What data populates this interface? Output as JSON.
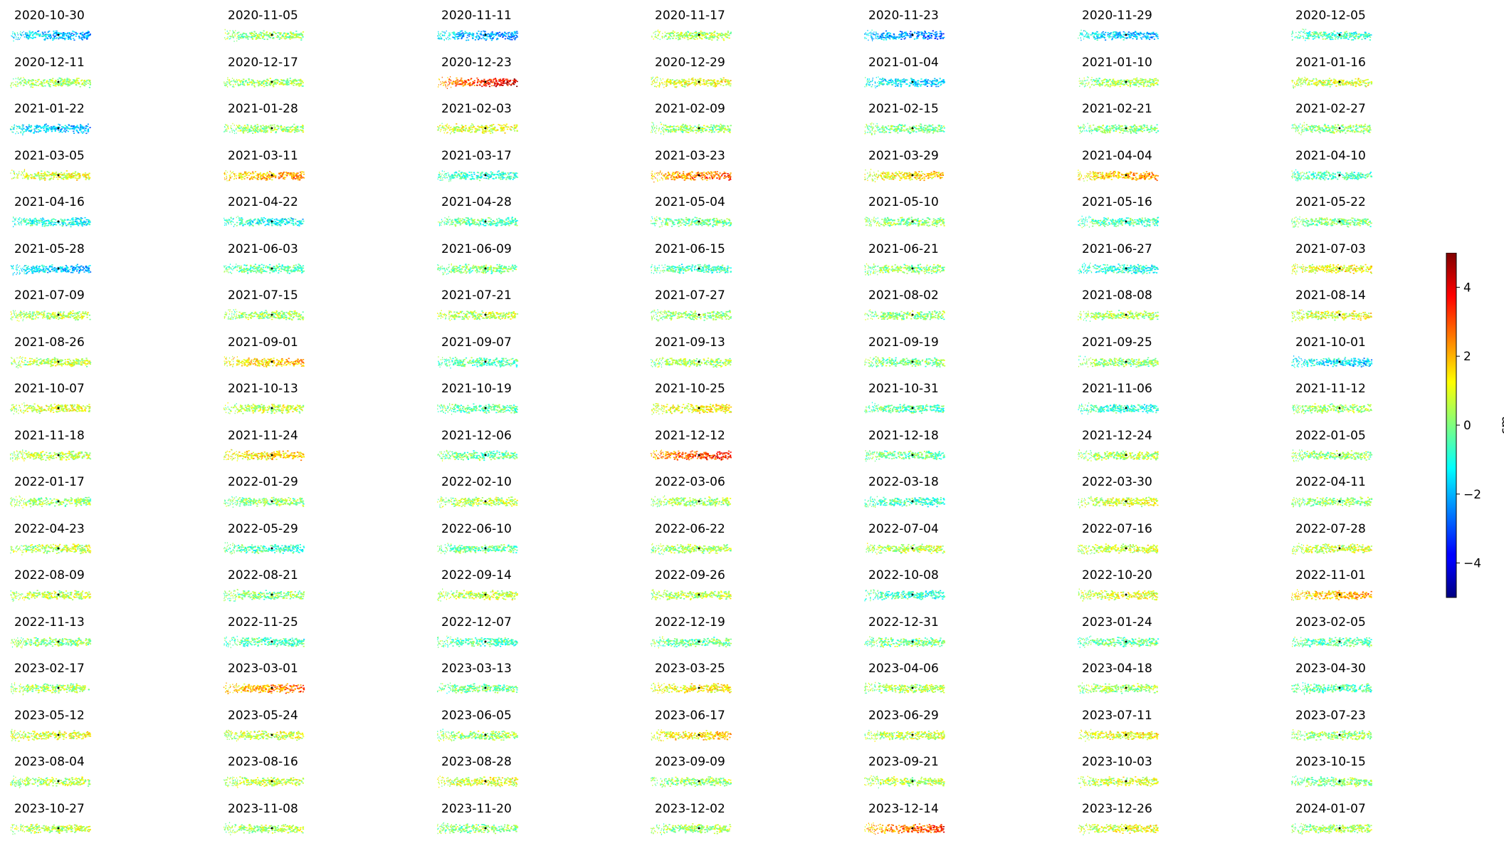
{
  "chart_data": {
    "type": "heatmap",
    "layout": "small-multiples grid of displacement maps, 7 columns x 18 rows",
    "panels": [
      {
        "date": "2020-10-30",
        "mean_cm": -1.8
      },
      {
        "date": "2020-11-05",
        "mean_cm": 0.2
      },
      {
        "date": "2020-11-11",
        "mean_cm": -1.9
      },
      {
        "date": "2020-11-17",
        "mean_cm": 0.4
      },
      {
        "date": "2020-11-23",
        "mean_cm": -2.2
      },
      {
        "date": "2020-11-29",
        "mean_cm": -1.6
      },
      {
        "date": "2020-12-05",
        "mean_cm": -0.6
      },
      {
        "date": "2020-12-11",
        "mean_cm": 0.4
      },
      {
        "date": "2020-12-17",
        "mean_cm": 0.3
      },
      {
        "date": "2020-12-23",
        "mean_cm": 3.2
      },
      {
        "date": "2020-12-29",
        "mean_cm": 1.0
      },
      {
        "date": "2021-01-04",
        "mean_cm": -1.5
      },
      {
        "date": "2021-01-10",
        "mean_cm": 0.3
      },
      {
        "date": "2021-01-16",
        "mean_cm": 0.8
      },
      {
        "date": "2021-01-22",
        "mean_cm": -1.6
      },
      {
        "date": "2021-01-28",
        "mean_cm": 0.3
      },
      {
        "date": "2021-02-03",
        "mean_cm": 1.0
      },
      {
        "date": "2021-02-09",
        "mean_cm": 0.2
      },
      {
        "date": "2021-02-15",
        "mean_cm": 0.0
      },
      {
        "date": "2021-02-21",
        "mean_cm": 0.0
      },
      {
        "date": "2021-02-27",
        "mean_cm": 0.1
      },
      {
        "date": "2021-03-05",
        "mean_cm": 0.9
      },
      {
        "date": "2021-03-11",
        "mean_cm": 1.9
      },
      {
        "date": "2021-03-17",
        "mean_cm": -0.7
      },
      {
        "date": "2021-03-23",
        "mean_cm": 2.4
      },
      {
        "date": "2021-03-29",
        "mean_cm": 1.3
      },
      {
        "date": "2021-04-04",
        "mean_cm": 1.9
      },
      {
        "date": "2021-04-10",
        "mean_cm": -0.5
      },
      {
        "date": "2021-04-16",
        "mean_cm": -1.0
      },
      {
        "date": "2021-04-22",
        "mean_cm": -1.1
      },
      {
        "date": "2021-04-28",
        "mean_cm": -0.4
      },
      {
        "date": "2021-05-04",
        "mean_cm": -0.2
      },
      {
        "date": "2021-05-10",
        "mean_cm": 0.1
      },
      {
        "date": "2021-05-16",
        "mean_cm": -0.5
      },
      {
        "date": "2021-05-22",
        "mean_cm": 0.0
      },
      {
        "date": "2021-05-28",
        "mean_cm": -1.6
      },
      {
        "date": "2021-06-03",
        "mean_cm": -0.3
      },
      {
        "date": "2021-06-09",
        "mean_cm": 0.0
      },
      {
        "date": "2021-06-15",
        "mean_cm": -0.6
      },
      {
        "date": "2021-06-21",
        "mean_cm": 0.1
      },
      {
        "date": "2021-06-27",
        "mean_cm": -0.9
      },
      {
        "date": "2021-07-03",
        "mean_cm": 1.1
      },
      {
        "date": "2021-07-09",
        "mean_cm": 0.5
      },
      {
        "date": "2021-07-15",
        "mean_cm": 0.3
      },
      {
        "date": "2021-07-21",
        "mean_cm": 0.6
      },
      {
        "date": "2021-07-27",
        "mean_cm": 0.1
      },
      {
        "date": "2021-08-02",
        "mean_cm": 0.1
      },
      {
        "date": "2021-08-08",
        "mean_cm": 0.4
      },
      {
        "date": "2021-08-14",
        "mean_cm": 0.9
      },
      {
        "date": "2021-08-26",
        "mean_cm": 0.6
      },
      {
        "date": "2021-09-01",
        "mean_cm": 1.6
      },
      {
        "date": "2021-09-07",
        "mean_cm": -0.4
      },
      {
        "date": "2021-09-13",
        "mean_cm": 0.3
      },
      {
        "date": "2021-09-19",
        "mean_cm": 0.0
      },
      {
        "date": "2021-09-25",
        "mean_cm": 0.1
      },
      {
        "date": "2021-10-01",
        "mean_cm": -1.4
      },
      {
        "date": "2021-10-07",
        "mean_cm": 0.9
      },
      {
        "date": "2021-10-13",
        "mean_cm": 0.6
      },
      {
        "date": "2021-10-19",
        "mean_cm": -0.3
      },
      {
        "date": "2021-10-25",
        "mean_cm": 1.2
      },
      {
        "date": "2021-10-31",
        "mean_cm": -0.4
      },
      {
        "date": "2021-11-06",
        "mean_cm": -0.8
      },
      {
        "date": "2021-11-12",
        "mean_cm": 0.2
      },
      {
        "date": "2021-11-18",
        "mean_cm": 0.6
      },
      {
        "date": "2021-11-24",
        "mean_cm": 1.5
      },
      {
        "date": "2021-12-06",
        "mean_cm": -0.2
      },
      {
        "date": "2021-12-12",
        "mean_cm": 2.9
      },
      {
        "date": "2021-12-18",
        "mean_cm": -0.2
      },
      {
        "date": "2021-12-24",
        "mean_cm": 0.4
      },
      {
        "date": "2022-01-05",
        "mean_cm": 0.2
      },
      {
        "date": "2022-01-17",
        "mean_cm": 0.2
      },
      {
        "date": "2022-01-29",
        "mean_cm": 0.1
      },
      {
        "date": "2022-02-10",
        "mean_cm": 0.5
      },
      {
        "date": "2022-03-06",
        "mean_cm": 0.3
      },
      {
        "date": "2022-03-18",
        "mean_cm": -0.6
      },
      {
        "date": "2022-03-30",
        "mean_cm": 0.8
      },
      {
        "date": "2022-04-11",
        "mean_cm": 0.1
      },
      {
        "date": "2022-04-23",
        "mean_cm": 0.6
      },
      {
        "date": "2022-05-29",
        "mean_cm": -0.6
      },
      {
        "date": "2022-06-10",
        "mean_cm": -0.2
      },
      {
        "date": "2022-06-22",
        "mean_cm": 0.3
      },
      {
        "date": "2022-07-04",
        "mean_cm": 0.6
      },
      {
        "date": "2022-07-16",
        "mean_cm": 0.8
      },
      {
        "date": "2022-07-28",
        "mean_cm": 0.7
      },
      {
        "date": "2022-08-09",
        "mean_cm": 0.6
      },
      {
        "date": "2022-08-21",
        "mean_cm": 0.1
      },
      {
        "date": "2022-09-14",
        "mean_cm": 0.6
      },
      {
        "date": "2022-09-26",
        "mean_cm": 0.5
      },
      {
        "date": "2022-10-08",
        "mean_cm": -0.7
      },
      {
        "date": "2022-10-20",
        "mean_cm": 0.9
      },
      {
        "date": "2022-11-01",
        "mean_cm": 1.8
      },
      {
        "date": "2022-11-13",
        "mean_cm": 0.1
      },
      {
        "date": "2022-11-25",
        "mean_cm": -0.5
      },
      {
        "date": "2022-12-07",
        "mean_cm": -0.4
      },
      {
        "date": "2022-12-19",
        "mean_cm": -0.2
      },
      {
        "date": "2022-12-31",
        "mean_cm": -0.1
      },
      {
        "date": "2023-01-24",
        "mean_cm": -0.2
      },
      {
        "date": "2023-02-05",
        "mean_cm": -0.3
      },
      {
        "date": "2023-02-17",
        "mean_cm": 0.4
      },
      {
        "date": "2023-03-01",
        "mean_cm": 2.2
      },
      {
        "date": "2023-03-13",
        "mean_cm": -0.2
      },
      {
        "date": "2023-03-25",
        "mean_cm": 1.2
      },
      {
        "date": "2023-04-06",
        "mean_cm": 0.4
      },
      {
        "date": "2023-04-18",
        "mean_cm": 0.3
      },
      {
        "date": "2023-04-30",
        "mean_cm": -0.4
      },
      {
        "date": "2023-05-12",
        "mean_cm": 0.9
      },
      {
        "date": "2023-05-24",
        "mean_cm": 0.7
      },
      {
        "date": "2023-06-05",
        "mean_cm": 0.3
      },
      {
        "date": "2023-06-17",
        "mean_cm": 1.4
      },
      {
        "date": "2023-06-29",
        "mean_cm": 0.6
      },
      {
        "date": "2023-07-11",
        "mean_cm": 1.1
      },
      {
        "date": "2023-07-23",
        "mean_cm": 0.3
      },
      {
        "date": "2023-08-04",
        "mean_cm": 0.4
      },
      {
        "date": "2023-08-16",
        "mean_cm": 0.6
      },
      {
        "date": "2023-08-28",
        "mean_cm": 0.9
      },
      {
        "date": "2023-09-09",
        "mean_cm": 0.2
      },
      {
        "date": "2023-09-21",
        "mean_cm": 0.5
      },
      {
        "date": "2023-10-03",
        "mean_cm": 0.7
      },
      {
        "date": "2023-10-15",
        "mean_cm": 0.1
      },
      {
        "date": "2023-10-27",
        "mean_cm": 0.6
      },
      {
        "date": "2023-11-08",
        "mean_cm": 0.5
      },
      {
        "date": "2023-11-20",
        "mean_cm": 0.1
      },
      {
        "date": "2023-12-02",
        "mean_cm": 0.3
      },
      {
        "date": "2023-12-14",
        "mean_cm": 2.6
      },
      {
        "date": "2023-12-26",
        "mean_cm": 0.9
      },
      {
        "date": "2024-01-07",
        "mean_cm": 0.4
      }
    ],
    "colorbar": {
      "label": "cm",
      "colormap": "jet",
      "range": [
        -5,
        5
      ],
      "ticks": [
        4,
        2,
        0,
        -2,
        -4
      ],
      "tick_labels": [
        "4",
        "2",
        "0",
        "−2",
        "−4"
      ]
    },
    "grid": false
  }
}
